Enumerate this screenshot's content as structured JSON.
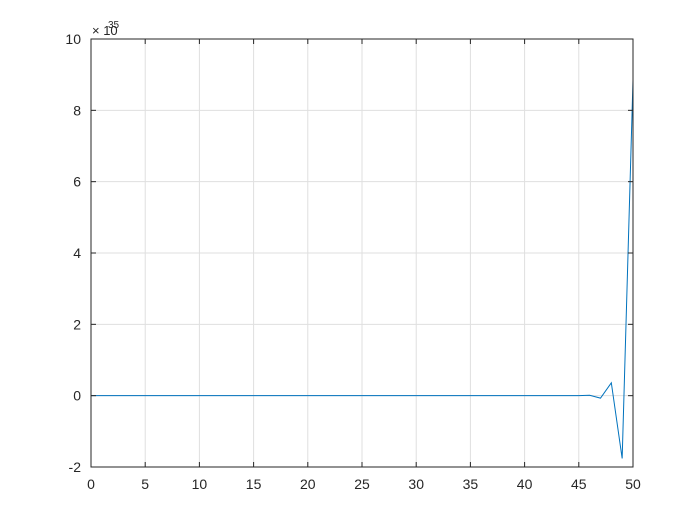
{
  "chart_data": {
    "type": "line",
    "title": "",
    "xlabel": "",
    "ylabel": "",
    "xlim": [
      0,
      50
    ],
    "ylim": [
      -2,
      10
    ],
    "y_exponent_label": "× 10",
    "y_exponent": "35",
    "xticks": [
      0,
      5,
      10,
      15,
      20,
      25,
      30,
      35,
      40,
      45,
      50
    ],
    "yticks": [
      -2,
      0,
      2,
      4,
      6,
      8,
      10
    ],
    "grid": true,
    "line_color": "#0072BD",
    "series": [
      {
        "x": [
          0,
          1,
          2,
          3,
          4,
          5,
          6,
          7,
          8,
          9,
          10,
          11,
          12,
          13,
          14,
          15,
          16,
          17,
          18,
          19,
          20,
          21,
          22,
          23,
          24,
          25,
          26,
          27,
          28,
          29,
          30,
          31,
          32,
          33,
          34,
          35,
          36,
          37,
          38,
          39,
          40,
          41,
          42,
          43,
          44,
          45,
          46,
          47,
          48,
          49,
          50
        ],
        "y": [
          0,
          0,
          0,
          0,
          0,
          0,
          0,
          0,
          0,
          0,
          0,
          0,
          0,
          0,
          0,
          0,
          0,
          0,
          0,
          0,
          0,
          0,
          0,
          0,
          0,
          0,
          0,
          0,
          0,
          0,
          0,
          0,
          0,
          0,
          0,
          0,
          0,
          0,
          0,
          0,
          0,
          0,
          0,
          0,
          0,
          0,
          0.01,
          -0.07,
          0.36,
          -1.76,
          8.85
        ]
      }
    ]
  }
}
